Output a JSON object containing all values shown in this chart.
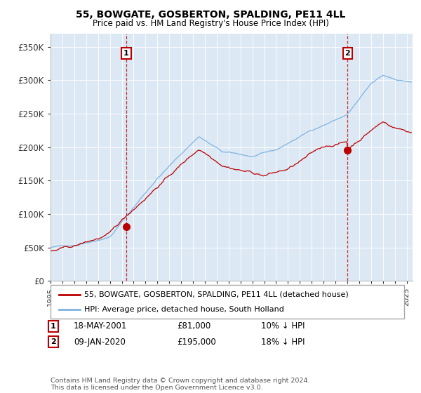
{
  "title": "55, BOWGATE, GOSBERTON, SPALDING, PE11 4LL",
  "subtitle": "Price paid vs. HM Land Registry's House Price Index (HPI)",
  "ylabel_ticks": [
    "£0",
    "£50K",
    "£100K",
    "£150K",
    "£200K",
    "£250K",
    "£300K",
    "£350K"
  ],
  "ytick_values": [
    0,
    50000,
    100000,
    150000,
    200000,
    250000,
    300000,
    350000
  ],
  "ylim": [
    0,
    370000
  ],
  "xlim_start": 1995.0,
  "xlim_end": 2025.5,
  "background_color": "#dce9f5",
  "hpi_line_color": "#7fb3e0",
  "price_line_color": "#bb0000",
  "sale1_date": 2001.38,
  "sale1_price": 81000,
  "sale2_date": 2020.03,
  "sale2_price": 195000,
  "legend_label1": "55, BOWGATE, GOSBERTON, SPALDING, PE11 4LL (detached house)",
  "legend_label2": "HPI: Average price, detached house, South Holland",
  "annotation1_date": "18-MAY-2001",
  "annotation1_price": "£81,000",
  "annotation1_note": "10% ↓ HPI",
  "annotation2_date": "09-JAN-2020",
  "annotation2_price": "£195,000",
  "annotation2_note": "18% ↓ HPI",
  "footer": "Contains HM Land Registry data © Crown copyright and database right 2024.\nThis data is licensed under the Open Government Licence v3.0."
}
